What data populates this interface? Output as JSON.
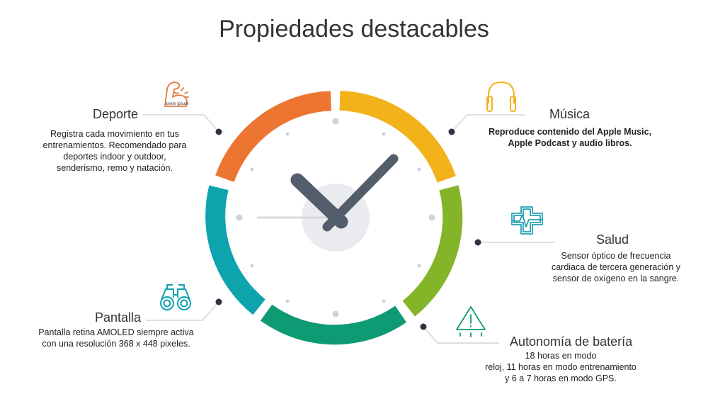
{
  "title": "Propiedades destacables",
  "features": {
    "deporte": {
      "label": "Deporte",
      "icon_text": "lorem ipsum",
      "desc": [
        "Registra cada movimiento en tus",
        "entrenamientos. Recomendado para",
        "deportes indoor y outdoor,",
        "senderismo, remo y natación."
      ],
      "color": "#ec7532"
    },
    "musica": {
      "label": "Música",
      "desc": [
        "Reproduce contenido del Apple Music,",
        "Apple Podcast y audio libros."
      ],
      "color": "#f2b21a"
    },
    "salud": {
      "label": "Salud",
      "desc": [
        "Sensor óptico de frecuencia",
        "cardiaca de tercera generación y",
        "sensor de oxígeno en la sangre."
      ],
      "color": "#84b528"
    },
    "bateria": {
      "label": "Autonomía de batería",
      "desc": [
        "18 horas en modo",
        "reloj, 11 horas en modo entrenamiento",
        "y 6 a 7 horas en modo GPS."
      ],
      "color": "#0e9a73"
    },
    "pantalla": {
      "label": "Pantalla",
      "desc": [
        "Pantalla retina AMOLED siempre activa",
        "con una resolución 368 x 448 pixeles."
      ],
      "color": "#0ea4ae"
    }
  }
}
